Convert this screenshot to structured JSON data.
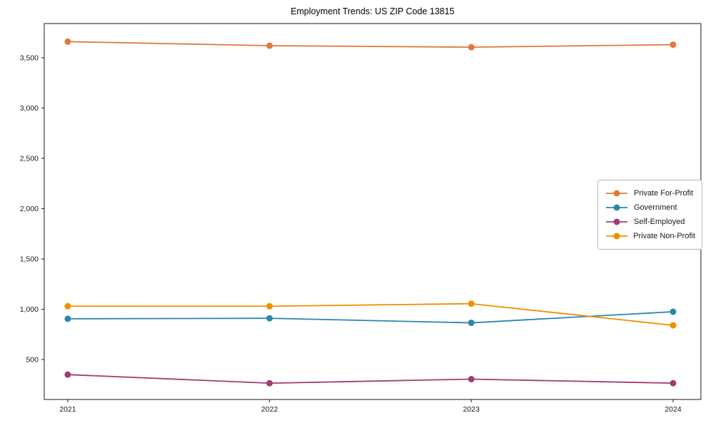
{
  "chart_data": {
    "type": "line",
    "title": "Employment Trends: US ZIP Code 13815",
    "xlabel": "",
    "ylabel": "",
    "x": [
      "2021",
      "2022",
      "2023",
      "2024"
    ],
    "series": [
      {
        "name": "Private For-Profit",
        "color": "#e1793d",
        "values": [
          3660,
          3620,
          3605,
          3630
        ]
      },
      {
        "name": "Government",
        "color": "#2e86ab",
        "values": [
          905,
          910,
          865,
          975
        ]
      },
      {
        "name": "Self-Employed",
        "color": "#a23b72",
        "values": [
          350,
          265,
          305,
          265
        ]
      },
      {
        "name": "Private Non-Profit",
        "color": "#f18f01",
        "values": [
          1030,
          1030,
          1055,
          840
        ]
      }
    ],
    "yticks": [
      500,
      1000,
      1500,
      2000,
      2500,
      3000,
      3500
    ],
    "ytick_labels": [
      "500",
      "1,000",
      "1,500",
      "2,000",
      "2,500",
      "3,000",
      "3,500"
    ],
    "ylim": [
      103,
      3840
    ],
    "grid": false,
    "legend_position": "center-right-inside",
    "axis_color": "#1a1a1a",
    "background": "#ffffff"
  }
}
